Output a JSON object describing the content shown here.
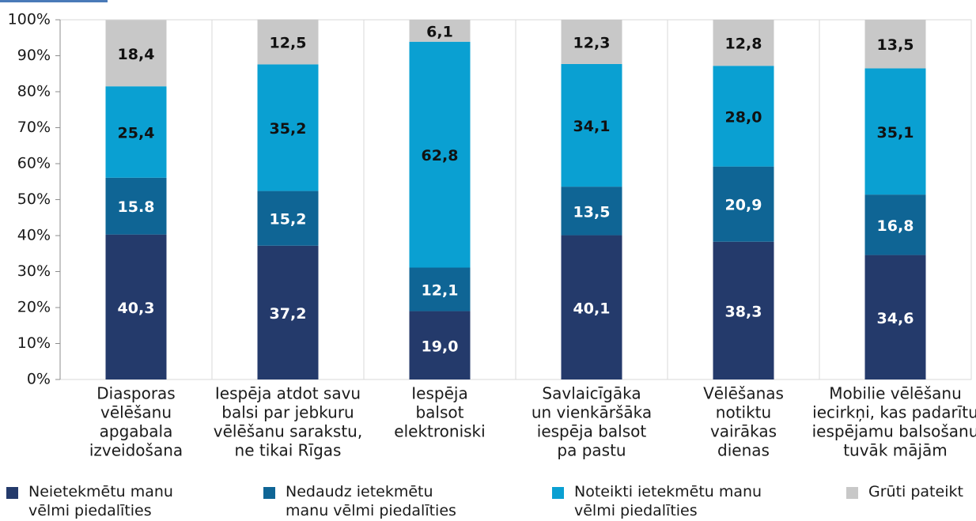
{
  "chart_data": {
    "type": "stacked_bar",
    "categories": [
      [
        "Diasporas",
        "vēlēšanu",
        "apgabala",
        "izveidošana"
      ],
      [
        "Iespēja atdot savu",
        "balsi par jebkuru",
        "vēlēšanu sarakstu,",
        "ne tikai Rīgas"
      ],
      [
        "Iespēja",
        "balsot",
        "elektroniski"
      ],
      [
        "Savlaicīgāka",
        "un vienkāršāka",
        "iespēja balsot",
        "pa pastu"
      ],
      [
        "Vēlēšanas",
        "notiktu",
        "vairākas",
        "dienas"
      ],
      [
        "Mobilie vēlēšanu",
        "iecirkņi, kas padarītu",
        "iespējamu balsošanu",
        "tuvāk mājām"
      ]
    ],
    "series": [
      {
        "name": "Neietekmētu manu vēlmi piedalīties",
        "color": "#243a6b",
        "label_color": "#ffffff",
        "values": [
          40.3,
          37.2,
          19.0,
          40.1,
          38.3,
          34.6
        ],
        "value_labels": [
          "40,3",
          "37,2",
          "19,0",
          "40,1",
          "38,3",
          "34,6"
        ]
      },
      {
        "name": "Nedaudz ietekmētu manu vēlmi piedalīties",
        "color": "#0f6595",
        "label_color": "#ffffff",
        "values": [
          15.8,
          15.2,
          12.1,
          13.5,
          20.9,
          16.8
        ],
        "value_labels": [
          "15.8",
          "15,2",
          "12,1",
          "13,5",
          "20,9",
          "16,8"
        ]
      },
      {
        "name": "Noteikti ietekmētu manu vēlmi piedalīties",
        "color": "#0aa0d2",
        "label_color": "#111111",
        "values": [
          25.4,
          35.2,
          62.8,
          34.1,
          28.0,
          35.1
        ],
        "value_labels": [
          "25,4",
          "35,2",
          "62,8",
          "34,1",
          "28,0",
          "35,1"
        ]
      },
      {
        "name": "Grūti pateikt",
        "color": "#c8c8c8",
        "label_color": "#111111",
        "values": [
          18.4,
          12.5,
          6.1,
          12.3,
          12.8,
          13.5
        ],
        "value_labels": [
          "18,4",
          "12,5",
          "6,1",
          "12,3",
          "12,8",
          "13,5"
        ]
      }
    ],
    "ylim": [
      0,
      100
    ],
    "yticks": [
      {
        "value": 0,
        "label": "0%"
      },
      {
        "value": 10,
        "label": "10%"
      },
      {
        "value": 20,
        "label": "20%"
      },
      {
        "value": 30,
        "label": "30%"
      },
      {
        "value": 40,
        "label": "40%"
      },
      {
        "value": 50,
        "label": "50%"
      },
      {
        "value": 60,
        "label": "60%"
      },
      {
        "value": 70,
        "label": "70%"
      },
      {
        "value": 80,
        "label": "80%"
      },
      {
        "value": 90,
        "label": "90%"
      },
      {
        "value": 100,
        "label": "100%"
      }
    ]
  }
}
